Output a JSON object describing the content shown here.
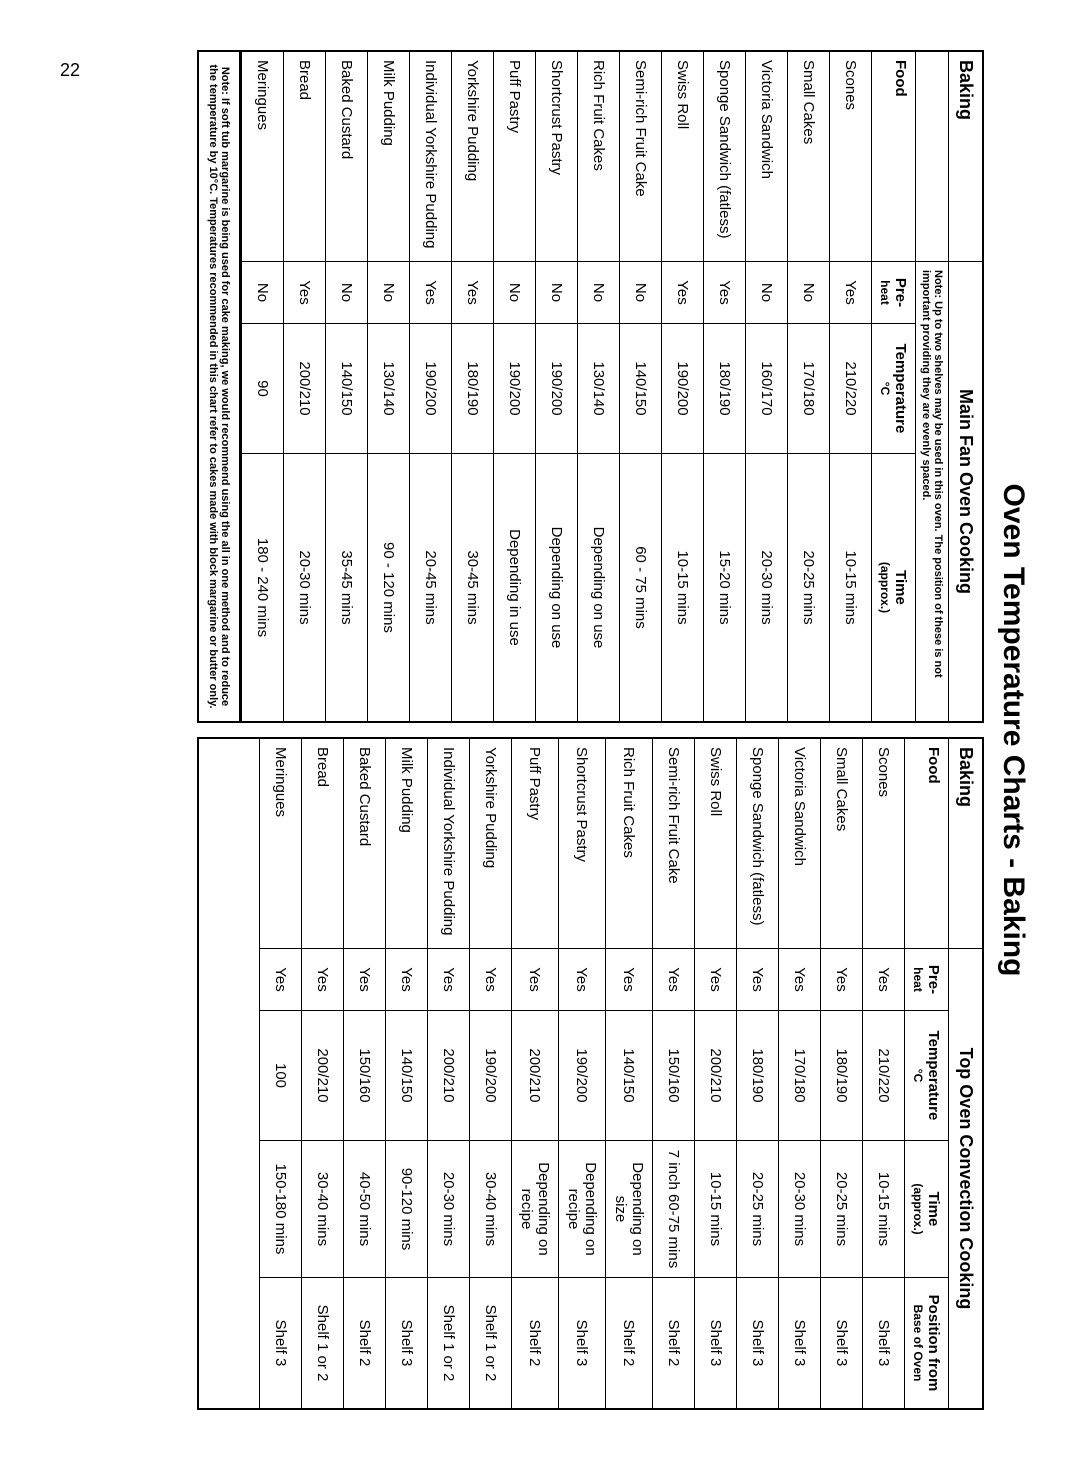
{
  "page_number": "22",
  "title": "Oven Temperature Charts - Baking",
  "left": {
    "section": "Baking",
    "cooking_title": "Main Fan Oven Cooking",
    "note": "Note: Up to two shelves may be used in this oven. The position of these is not important providing they are evenly spaced.",
    "columns": {
      "food": "Food",
      "preheat_l1": "Pre-",
      "preheat_l2": "heat",
      "temp_l1": "Temperature",
      "temp_l2": "°C",
      "time_l1": "Time",
      "time_l2": "(approx.)"
    },
    "rows": [
      {
        "food": "Scones",
        "pre": "Yes",
        "temp": "210/220",
        "time": "10-15 mins"
      },
      {
        "food": "Small Cakes",
        "pre": "No",
        "temp": "170/180",
        "time": "20-25 mins"
      },
      {
        "food": "Victoria Sandwich",
        "pre": "No",
        "temp": "160/170",
        "time": "20-30 mins"
      },
      {
        "food": "Sponge Sandwich (fatless)",
        "pre": "Yes",
        "temp": "180/190",
        "time": "15-20 mins"
      },
      {
        "food": "Swiss Roll",
        "pre": "Yes",
        "temp": "190/200",
        "time": "10-15 mins"
      },
      {
        "food": "Semi-rich Fruit Cake",
        "pre": "No",
        "temp": "140/150",
        "time": "60 - 75 mins"
      },
      {
        "food": "Rich Fruit Cakes",
        "pre": "No",
        "temp": "130/140",
        "time": "Depending on use"
      },
      {
        "food": "Shortcrust Pastry",
        "pre": "No",
        "temp": "190/200",
        "time": "Depending on use"
      },
      {
        "food": "Puff Pastry",
        "pre": "No",
        "temp": "190/200",
        "time": "Depending in use"
      },
      {
        "food": "Yorkshire Pudding",
        "pre": "Yes",
        "temp": "180/190",
        "time": "30-45 mins"
      },
      {
        "food": "Individual Yorkshire Pudding",
        "pre": "Yes",
        "temp": "190/200",
        "time": "20-45 mins"
      },
      {
        "food": "Milk Pudding",
        "pre": "No",
        "temp": "130/140",
        "time": "90 - 120 mins"
      },
      {
        "food": "Baked Custard",
        "pre": "No",
        "temp": "140/150",
        "time": "35-45 mins"
      },
      {
        "food": "Bread",
        "pre": "Yes",
        "temp": "200/210",
        "time": "20-30 mins"
      },
      {
        "food": "Meringues",
        "pre": "No",
        "temp": "90",
        "time": "180 - 240 mins"
      }
    ],
    "footnote": "Note: If soft tub margarine is being used for cake making, we would recommend using the all in one method and to reduce the temperature by 10°C. Temperatures recommended in this chart refer to cakes made with block margarine or butter only."
  },
  "right": {
    "section": "Baking",
    "cooking_title": "Top Oven Convection Cooking",
    "columns": {
      "food": "Food",
      "preheat_l1": "Pre-",
      "preheat_l2": "heat",
      "temp_l1": "Temperature",
      "temp_l2": "°C",
      "time_l1": "Time",
      "time_l2": "(approx.)",
      "pos_l1": "Position from",
      "pos_l2": "Base of Oven"
    },
    "rows": [
      {
        "food": "Scones",
        "pre": "Yes",
        "temp": "210/220",
        "time": "10-15 mins",
        "pos": "Shelf 3"
      },
      {
        "food": "Small Cakes",
        "pre": "Yes",
        "temp": "180/190",
        "time": "20-25 mins",
        "pos": "Shelf 3"
      },
      {
        "food": "Victoria Sandwich",
        "pre": "Yes",
        "temp": "170/180",
        "time": "20-30 mins",
        "pos": "Shelf 3"
      },
      {
        "food": "Sponge Sandwich (fatless)",
        "pre": "Yes",
        "temp": "180/190",
        "time": "20-25 mins",
        "pos": "Shelf 3"
      },
      {
        "food": "Swiss Roll",
        "pre": "Yes",
        "temp": "200/210",
        "time": "10-15 mins",
        "pos": "Shelf 3"
      },
      {
        "food": "Semi-rich Fruit Cake",
        "pre": "Yes",
        "temp": "150/160",
        "time": "7 inch 60-75 mins",
        "pos": "Shelf 2"
      },
      {
        "food": "Rich Fruit Cakes",
        "pre": "Yes",
        "temp": "140/150",
        "time": "Depending on size",
        "pos": "Shelf 2"
      },
      {
        "food": "Shortcrust Pastry",
        "pre": "Yes",
        "temp": "190/200",
        "time": "Depending on recipe",
        "pos": "Shelf 3"
      },
      {
        "food": "Puff Pastry",
        "pre": "Yes",
        "temp": "200/210",
        "time": "Depending on recipe",
        "pos": "Shelf 2"
      },
      {
        "food": "Yorkshire Pudding",
        "pre": "Yes",
        "temp": "190/200",
        "time": "30-40 mins",
        "pos": "Shelf 1 or 2"
      },
      {
        "food": "Individual Yorkshire Pudding",
        "pre": "Yes",
        "temp": "200/210",
        "time": "20-30 mins",
        "pos": "Shelf 1 or 2"
      },
      {
        "food": "Milk Pudding",
        "pre": "Yes",
        "temp": "140/150",
        "time": "90-120 mins",
        "pos": "Shelf 3"
      },
      {
        "food": "Baked Custard",
        "pre": "Yes",
        "temp": "150/160",
        "time": "40-50 mins",
        "pos": "Shelf 2"
      },
      {
        "food": "Bread",
        "pre": "Yes",
        "temp": "200/210",
        "time": "30-40 mins",
        "pos": "Shelf 1 or 2"
      },
      {
        "food": "Meringues",
        "pre": "Yes",
        "temp": "100",
        "time": "150-180 mins",
        "pos": "Shelf 3"
      }
    ]
  }
}
